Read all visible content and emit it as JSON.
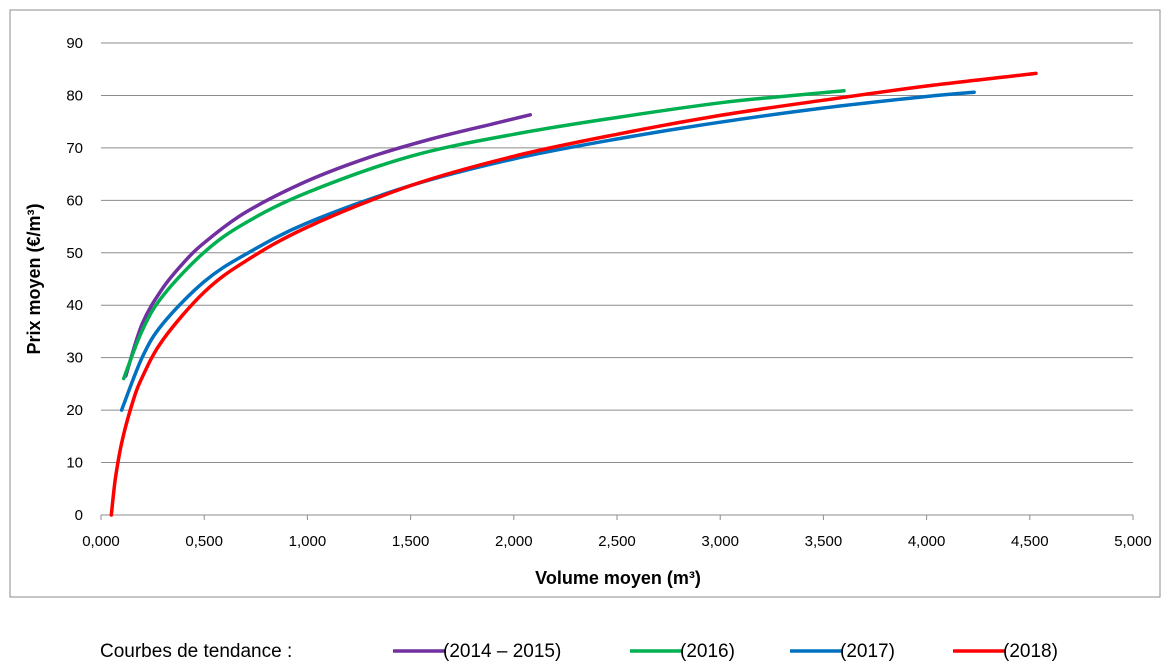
{
  "chart_data": {
    "type": "line",
    "title": "",
    "xlabel": "Volume moyen (m³)",
    "ylabel": "Prix moyen (€/m³)",
    "xlim": [
      0,
      5
    ],
    "ylim": [
      0,
      90
    ],
    "x_ticks": [
      "0,000",
      "0,500",
      "1,000",
      "1,500",
      "2,000",
      "2,500",
      "3,000",
      "3,500",
      "4,000",
      "4,500",
      "5,000"
    ],
    "y_ticks": [
      "0",
      "10",
      "20",
      "30",
      "40",
      "50",
      "60",
      "70",
      "80",
      "90"
    ],
    "grid": true,
    "legend_position": "bottom",
    "legend_title": "Courbes de tendance :",
    "series": [
      {
        "name": "(2014 – 2015)",
        "color": "#7030a0",
        "x": [
          0.12,
          0.2,
          0.3,
          0.4,
          0.5,
          0.7,
          1.0,
          1.3,
          1.6,
          1.9,
          2.08
        ],
        "y": [
          26.5,
          36.5,
          43.3,
          48.1,
          51.9,
          57.7,
          63.7,
          68.2,
          71.7,
          74.6,
          76.3
        ]
      },
      {
        "name": "(2016)",
        "color": "#00b050",
        "x": [
          0.11,
          0.2,
          0.3,
          0.5,
          0.7,
          1.0,
          1.5,
          2.0,
          2.5,
          3.0,
          3.3,
          3.6
        ],
        "y": [
          26,
          35.2,
          41.8,
          50.1,
          55.7,
          61.5,
          68.4,
          72.6,
          75.8,
          78.6,
          79.8,
          80.9
        ]
      },
      {
        "name": "(2017)",
        "color": "#0070c0",
        "x": [
          0.1,
          0.2,
          0.3,
          0.5,
          0.7,
          1.0,
          1.5,
          2.0,
          2.5,
          3.0,
          3.5,
          4.0,
          4.23
        ],
        "y": [
          20,
          30.1,
          36.5,
          44.5,
          49.7,
          55.7,
          62.8,
          67.9,
          71.7,
          74.9,
          77.6,
          79.8,
          80.6
        ]
      },
      {
        "name": "(2018)",
        "color": "#ff0000",
        "x": [
          0.05,
          0.07,
          0.1,
          0.15,
          0.2,
          0.3,
          0.5,
          0.7,
          1.0,
          1.5,
          2.0,
          2.5,
          3.0,
          3.5,
          4.0,
          4.53
        ],
        "y": [
          0,
          7,
          13.7,
          21.1,
          26.3,
          33.4,
          42.5,
          48.4,
          54.9,
          62.8,
          68.4,
          72.6,
          76.2,
          79.1,
          81.8,
          84.2
        ]
      }
    ]
  }
}
